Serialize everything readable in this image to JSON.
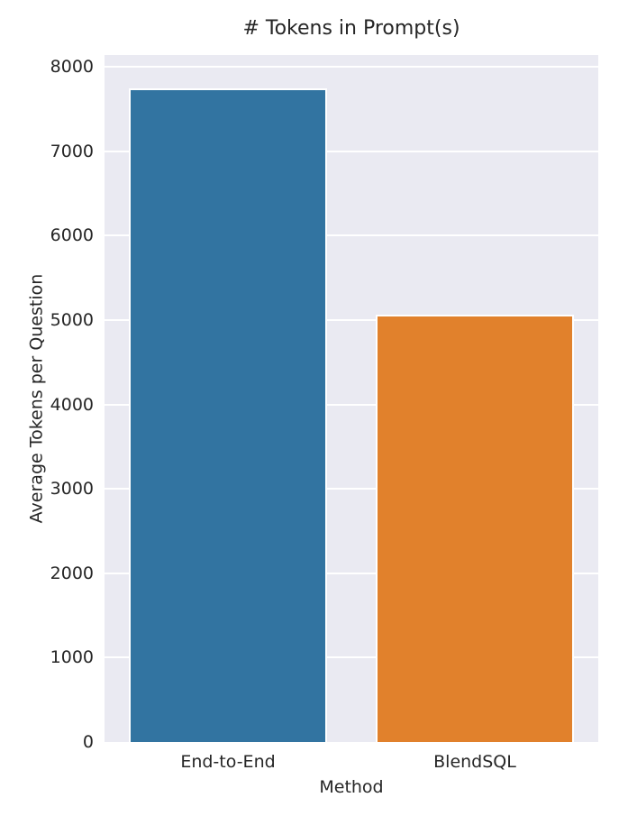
{
  "chart_data": {
    "type": "bar",
    "title": "# Tokens in Prompt(s)",
    "xlabel": "Method",
    "ylabel": "Average Tokens per Question",
    "categories": [
      "End-to-End",
      "BlendSQL"
    ],
    "values": [
      7750,
      5065
    ],
    "bar_colors": [
      "#3274A1",
      "#E1812C"
    ],
    "bar_edge_color": "#FFFFFF",
    "yticks": [
      0,
      1000,
      2000,
      3000,
      4000,
      5000,
      6000,
      7000,
      8000
    ],
    "ylim": [
      0,
      8140
    ],
    "grid": true,
    "grid_color": "#FFFFFF",
    "plot_bg_color": "#EAEAF2",
    "figure_bg_color": "#FFFFFF",
    "text_color": "#262626",
    "legend": null,
    "legend_position": null
  }
}
